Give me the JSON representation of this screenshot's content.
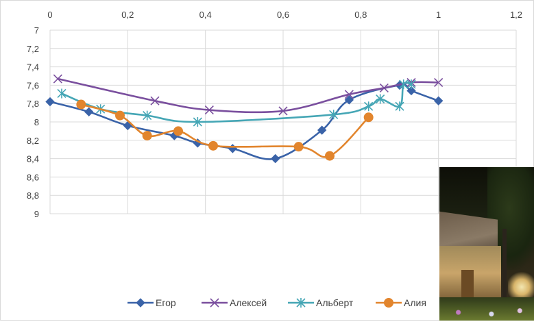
{
  "chart_data": {
    "type": "scatter",
    "title": "",
    "xlabel": "",
    "ylabel": "",
    "xlim": [
      0,
      1.2
    ],
    "ylim": [
      7,
      9
    ],
    "y_reversed": true,
    "x_axis_position": "top",
    "grid": "vertical and horizontal major gridlines",
    "legend_position": "bottom",
    "x_ticks": [
      "0",
      "0,2",
      "0,4",
      "0,6",
      "0,8",
      "1",
      "1,2"
    ],
    "y_ticks": [
      "7",
      "7,2",
      "7,4",
      "7,6",
      "7,8",
      "8",
      "8,2",
      "8,4",
      "8,6",
      "8,8",
      "9"
    ],
    "series": [
      {
        "name": "Егор",
        "color": "#3a63a8",
        "marker": "diamond",
        "points": [
          [
            0,
            7.78
          ],
          [
            0.1,
            7.89
          ],
          [
            0.2,
            8.04
          ],
          [
            0.32,
            8.15
          ],
          [
            0.38,
            8.23
          ],
          [
            0.47,
            8.29
          ],
          [
            0.58,
            8.4
          ],
          [
            0.7,
            8.09
          ],
          [
            0.77,
            7.76
          ],
          [
            0.9,
            7.6
          ],
          [
            0.93,
            7.66
          ],
          [
            1.0,
            7.77
          ]
        ]
      },
      {
        "name": "Алексей",
        "color": "#7a4f9e",
        "marker": "x",
        "points": [
          [
            0.02,
            7.53
          ],
          [
            0.27,
            7.77
          ],
          [
            0.41,
            7.87
          ],
          [
            0.6,
            7.88
          ],
          [
            0.77,
            7.7
          ],
          [
            0.86,
            7.63
          ],
          [
            0.93,
            7.57
          ],
          [
            1.0,
            7.57
          ]
        ]
      },
      {
        "name": "Альберт",
        "color": "#45a6b5",
        "marker": "asterisk",
        "points": [
          [
            0.03,
            7.69
          ],
          [
            0.13,
            7.86
          ],
          [
            0.25,
            7.93
          ],
          [
            0.38,
            8.0
          ],
          [
            0.73,
            7.92
          ],
          [
            0.82,
            7.83
          ],
          [
            0.85,
            7.75
          ],
          [
            0.9,
            7.83
          ],
          [
            0.91,
            7.59
          ],
          [
            0.93,
            7.59
          ]
        ]
      },
      {
        "name": "Алия",
        "color": "#e2852d",
        "marker": "circle",
        "points": [
          [
            0.08,
            7.81
          ],
          [
            0.18,
            7.93
          ],
          [
            0.25,
            8.15
          ],
          [
            0.33,
            8.1
          ],
          [
            0.42,
            8.26
          ],
          [
            0.64,
            8.27
          ],
          [
            0.72,
            8.37
          ],
          [
            0.82,
            7.95
          ]
        ]
      }
    ]
  }
}
